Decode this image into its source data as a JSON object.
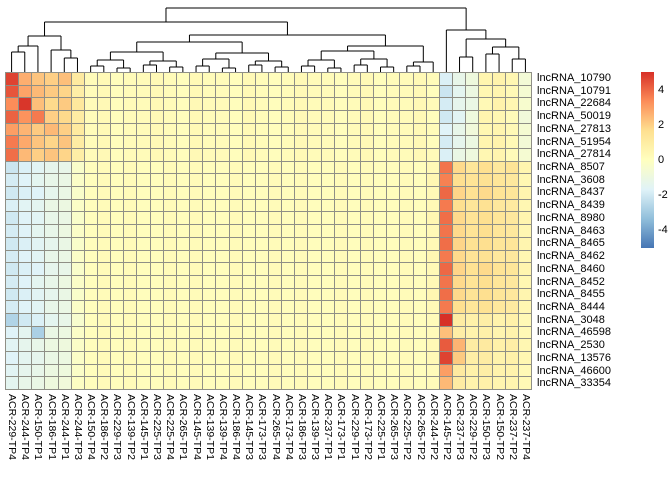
{
  "figure": {
    "kind": "clustered expression heatmap",
    "has_column_dendrogram": true,
    "has_row_dendrogram": false
  },
  "chart_data": {
    "type": "heatmap",
    "title": "",
    "xlabel": "",
    "ylabel": "",
    "legend_ticks": [
      4,
      2,
      0,
      -2,
      -4
    ],
    "value_range": [
      -4.5,
      4.5
    ],
    "colormap_stops": [
      "#4575B4",
      "#91BFDB",
      "#E0F3F8",
      "#FFFFBF",
      "#FEE090",
      "#FC8D59",
      "#D73027"
    ],
    "gridline_color": "#8f8f86",
    "rows": [
      "lncRNA_10790",
      "lncRNA_10791",
      "lncRNA_22684",
      "lncRNA_50019",
      "lncRNA_27813",
      "lncRNA_51954",
      "lncRNA_27814",
      "lncRNA_8507",
      "lncRNA_3608",
      "lncRNA_8437",
      "lncRNA_8439",
      "lncRNA_8980",
      "lncRNA_8463",
      "lncRNA_8465",
      "lncRNA_8462",
      "lncRNA_8460",
      "lncRNA_8452",
      "lncRNA_8455",
      "lncRNA_8444",
      "lncRNA_3048",
      "lncRNA_46598",
      "lncRNA_2530",
      "lncRNA_13576",
      "lncRNA_46600",
      "lncRNA_33354"
    ],
    "columns": [
      "ACR-229-TP4",
      "ACR-244-TP4",
      "ACR-150-TP1",
      "ACR-186-TP1",
      "ACR-244-TP1",
      "ACR-244-TP3",
      "ACR-150-TP4",
      "ACR-186-TP2",
      "ACR-229-TP3",
      "ACR-139-TP2",
      "ACR-145-TP1",
      "ACR-225-TP3",
      "ACR-225-TP4",
      "ACR-265-TP1",
      "ACR-145-TP4",
      "ACR-139-TP1",
      "ACR-139-TP4",
      "ACR-186-TP4",
      "ACR-145-TP3",
      "ACR-173-TP3",
      "ACR-265-TP4",
      "ACR-173-TP4",
      "ACR-186-TP3",
      "ACR-139-TP3",
      "ACR-237-TP1",
      "ACR-173-TP1",
      "ACR-229-TP1",
      "ACR-173-TP2",
      "ACR-225-TP1",
      "ACR-265-TP3",
      "ACR-225-TP2",
      "ACR-265-TP2",
      "ACR-244-TP2",
      "ACR-145-TP2",
      "ACR-237-TP3",
      "ACR-229-TP2",
      "ACR-150-TP3",
      "ACR-150-TP2",
      "ACR-237-TP2",
      "ACR-237-TP4"
    ],
    "values": [
      [
        4.2,
        2.4,
        2.0,
        1.8,
        2.1,
        1.0,
        0.2,
        0.3,
        0.1,
        0.2,
        0.2,
        0.3,
        0.2,
        0.1,
        0.3,
        0.2,
        0.2,
        0.1,
        0.3,
        0.2,
        0.1,
        0.2,
        0.3,
        0.2,
        0.2,
        0.1,
        0.2,
        0.3,
        0.1,
        0.2,
        0.2,
        0.3,
        0.2,
        -1.6,
        -1.1,
        -0.8,
        0.5,
        0.6,
        0.4,
        -0.6
      ],
      [
        3.9,
        2.6,
        2.2,
        1.9,
        1.7,
        0.8,
        0.2,
        0.3,
        0.1,
        0.2,
        0.2,
        0.3,
        0.2,
        0.1,
        0.3,
        0.2,
        0.2,
        0.1,
        0.3,
        0.2,
        0.1,
        0.2,
        0.3,
        0.2,
        0.2,
        0.1,
        0.2,
        0.3,
        0.1,
        0.2,
        0.2,
        0.3,
        0.1,
        -1.9,
        -1.3,
        -0.9,
        0.4,
        0.5,
        0.3,
        -0.5
      ],
      [
        3.0,
        4.4,
        2.1,
        1.6,
        1.9,
        1.1,
        0.2,
        0.3,
        0.1,
        0.2,
        0.2,
        0.3,
        0.2,
        0.1,
        0.3,
        0.2,
        0.2,
        0.1,
        0.3,
        0.2,
        0.1,
        0.2,
        0.3,
        0.2,
        0.2,
        0.1,
        0.2,
        0.3,
        0.1,
        0.2,
        0.2,
        0.3,
        0.2,
        -1.7,
        -1.2,
        -1.0,
        0.3,
        0.6,
        0.4,
        -0.4
      ],
      [
        3.7,
        2.9,
        3.3,
        1.8,
        1.6,
        0.9,
        0.2,
        0.3,
        0.1,
        0.2,
        0.2,
        0.3,
        0.2,
        0.1,
        0.3,
        0.2,
        0.2,
        0.1,
        0.3,
        0.2,
        0.1,
        0.2,
        0.3,
        0.2,
        0.2,
        0.1,
        0.2,
        0.3,
        0.1,
        0.2,
        0.2,
        0.3,
        0.1,
        -1.8,
        -1.4,
        -0.8,
        0.5,
        0.4,
        0.2,
        -0.7
      ],
      [
        2.7,
        2.3,
        1.9,
        2.2,
        1.8,
        1.0,
        0.2,
        0.3,
        0.1,
        0.2,
        0.2,
        0.3,
        0.2,
        0.1,
        0.3,
        0.2,
        0.2,
        0.1,
        0.3,
        0.2,
        0.1,
        0.2,
        0.3,
        0.2,
        0.2,
        0.1,
        0.2,
        0.3,
        0.1,
        0.2,
        0.2,
        0.3,
        0.2,
        -1.5,
        -1.1,
        -0.7,
        0.4,
        0.5,
        0.3,
        -0.5
      ],
      [
        3.3,
        2.5,
        2.0,
        1.7,
        2.0,
        0.9,
        0.2,
        0.3,
        0.1,
        0.2,
        0.2,
        0.3,
        0.2,
        0.1,
        0.3,
        0.2,
        0.2,
        0.1,
        0.3,
        0.2,
        0.1,
        0.2,
        0.3,
        0.2,
        0.2,
        0.1,
        0.2,
        0.3,
        0.1,
        0.2,
        0.2,
        0.3,
        0.1,
        -1.7,
        -1.2,
        -0.9,
        0.5,
        0.6,
        0.3,
        -0.6
      ],
      [
        3.5,
        2.2,
        1.8,
        2.0,
        1.7,
        0.8,
        0.2,
        0.3,
        0.1,
        0.2,
        0.2,
        0.3,
        0.2,
        0.1,
        0.3,
        0.2,
        0.2,
        0.1,
        0.3,
        0.2,
        0.1,
        0.2,
        0.3,
        0.2,
        0.2,
        0.1,
        0.2,
        0.3,
        0.1,
        0.2,
        0.2,
        0.3,
        0.2,
        -1.6,
        -1.0,
        -0.8,
        0.4,
        0.5,
        0.2,
        -0.5
      ],
      [
        -1.9,
        -1.6,
        -1.4,
        -1.2,
        -1.1,
        -0.3,
        0.1,
        0.2,
        0.1,
        0.2,
        0.1,
        0.1,
        0.2,
        0.1,
        0.2,
        0.1,
        0.1,
        0.2,
        0.1,
        0.1,
        0.2,
        0.1,
        0.2,
        0.1,
        0.1,
        0.2,
        0.1,
        0.2,
        0.1,
        0.1,
        0.2,
        0.1,
        0.3,
        3.4,
        1.6,
        1.2,
        1.5,
        1.1,
        1.3,
        0.5
      ],
      [
        -1.7,
        -1.5,
        -1.3,
        -1.1,
        -1.0,
        -0.2,
        0.1,
        0.2,
        0.1,
        0.2,
        0.1,
        0.1,
        0.2,
        0.1,
        0.2,
        0.1,
        0.1,
        0.2,
        0.1,
        0.1,
        0.2,
        0.1,
        0.2,
        0.1,
        0.1,
        0.2,
        0.1,
        0.2,
        0.1,
        0.1,
        0.2,
        0.1,
        0.4,
        3.2,
        1.5,
        1.3,
        1.4,
        1.2,
        1.1,
        0.4
      ],
      [
        -1.8,
        -1.6,
        -1.5,
        -1.2,
        -1.0,
        -0.3,
        0.1,
        0.2,
        0.1,
        0.2,
        0.1,
        0.1,
        0.2,
        0.1,
        0.2,
        0.1,
        0.1,
        0.2,
        0.1,
        0.1,
        0.2,
        0.1,
        0.2,
        0.1,
        0.1,
        0.2,
        0.1,
        0.2,
        0.1,
        0.1,
        0.2,
        0.1,
        0.3,
        3.6,
        1.7,
        1.4,
        1.6,
        1.3,
        1.2,
        0.5
      ],
      [
        -1.6,
        -1.4,
        -1.3,
        -1.0,
        -0.9,
        -0.2,
        0.1,
        0.2,
        0.1,
        0.2,
        0.1,
        0.1,
        0.2,
        0.1,
        0.2,
        0.1,
        0.1,
        0.2,
        0.1,
        0.1,
        0.2,
        0.1,
        0.2,
        0.1,
        0.1,
        0.2,
        0.1,
        0.2,
        0.1,
        0.1,
        0.2,
        0.1,
        0.3,
        3.3,
        1.5,
        1.2,
        1.4,
        1.1,
        1.0,
        0.4
      ],
      [
        -1.8,
        -1.5,
        -1.4,
        -1.1,
        -1.0,
        -0.3,
        0.1,
        0.2,
        0.1,
        0.2,
        0.1,
        0.1,
        0.2,
        0.1,
        0.2,
        0.1,
        0.1,
        0.2,
        0.1,
        0.1,
        0.2,
        0.1,
        0.2,
        0.1,
        0.1,
        0.2,
        0.1,
        0.2,
        0.1,
        0.1,
        0.2,
        0.1,
        0.4,
        3.5,
        1.6,
        1.3,
        1.5,
        1.2,
        1.1,
        0.5
      ],
      [
        -1.7,
        -1.5,
        -1.3,
        -1.1,
        -0.9,
        -0.2,
        0.1,
        0.2,
        0.1,
        0.2,
        0.1,
        0.1,
        0.2,
        0.1,
        0.2,
        0.1,
        0.1,
        0.2,
        0.1,
        0.1,
        0.2,
        0.1,
        0.2,
        0.1,
        0.1,
        0.2,
        0.1,
        0.2,
        0.1,
        0.1,
        0.2,
        0.1,
        0.3,
        3.4,
        1.6,
        1.3,
        1.5,
        1.2,
        1.1,
        0.4
      ],
      [
        -1.8,
        -1.6,
        -1.4,
        -1.2,
        -1.0,
        -0.3,
        0.1,
        0.2,
        0.1,
        0.2,
        0.1,
        0.1,
        0.2,
        0.1,
        0.2,
        0.1,
        0.1,
        0.2,
        0.1,
        0.1,
        0.2,
        0.1,
        0.2,
        0.1,
        0.1,
        0.2,
        0.1,
        0.2,
        0.1,
        0.1,
        0.2,
        0.1,
        0.3,
        3.5,
        1.7,
        1.4,
        1.5,
        1.2,
        1.2,
        0.5
      ],
      [
        -1.7,
        -1.5,
        -1.4,
        -1.1,
        -1.0,
        -0.2,
        0.1,
        0.2,
        0.1,
        0.2,
        0.1,
        0.1,
        0.2,
        0.1,
        0.2,
        0.1,
        0.1,
        0.2,
        0.1,
        0.1,
        0.2,
        0.1,
        0.2,
        0.1,
        0.1,
        0.2,
        0.1,
        0.2,
        0.1,
        0.1,
        0.2,
        0.1,
        0.4,
        3.3,
        1.6,
        1.3,
        1.4,
        1.1,
        1.1,
        0.4
      ],
      [
        -1.8,
        -1.6,
        -1.5,
        -1.2,
        -1.1,
        -0.3,
        0.1,
        0.2,
        0.1,
        0.2,
        0.1,
        0.1,
        0.2,
        0.1,
        0.2,
        0.1,
        0.1,
        0.2,
        0.1,
        0.1,
        0.2,
        0.1,
        0.2,
        0.1,
        0.1,
        0.2,
        0.1,
        0.2,
        0.1,
        0.1,
        0.2,
        0.1,
        0.3,
        3.6,
        1.7,
        1.4,
        1.6,
        1.3,
        1.2,
        0.5
      ],
      [
        -1.7,
        -1.5,
        -1.3,
        -1.1,
        -0.9,
        -0.2,
        0.1,
        0.2,
        0.1,
        0.2,
        0.1,
        0.1,
        0.2,
        0.1,
        0.2,
        0.1,
        0.1,
        0.2,
        0.1,
        0.1,
        0.2,
        0.1,
        0.2,
        0.1,
        0.1,
        0.2,
        0.1,
        0.2,
        0.1,
        0.1,
        0.2,
        0.1,
        0.3,
        3.4,
        1.6,
        1.3,
        1.5,
        1.2,
        1.1,
        0.4
      ],
      [
        -1.8,
        -1.6,
        -1.4,
        -1.2,
        -1.0,
        -0.3,
        0.1,
        0.2,
        0.1,
        0.2,
        0.1,
        0.1,
        0.2,
        0.1,
        0.2,
        0.1,
        0.1,
        0.2,
        0.1,
        0.1,
        0.2,
        0.1,
        0.2,
        0.1,
        0.1,
        0.2,
        0.1,
        0.2,
        0.1,
        0.1,
        0.2,
        0.1,
        0.4,
        3.5,
        1.6,
        1.3,
        1.5,
        1.2,
        1.1,
        0.5
      ],
      [
        -1.7,
        -1.5,
        -1.4,
        -1.1,
        -1.0,
        -0.2,
        0.1,
        0.2,
        0.1,
        0.2,
        0.1,
        0.1,
        0.2,
        0.1,
        0.2,
        0.1,
        0.1,
        0.2,
        0.1,
        0.1,
        0.2,
        0.1,
        0.2,
        0.1,
        0.1,
        0.2,
        0.1,
        0.2,
        0.1,
        0.1,
        0.2,
        0.1,
        0.3,
        3.3,
        1.5,
        1.2,
        1.4,
        1.1,
        1.0,
        0.4
      ],
      [
        -2.4,
        -1.8,
        -1.6,
        -1.3,
        -1.1,
        -0.4,
        0.1,
        0.2,
        0.1,
        0.2,
        0.1,
        0.1,
        0.2,
        0.1,
        0.2,
        0.1,
        0.1,
        0.2,
        0.1,
        0.1,
        0.2,
        0.1,
        0.2,
        0.1,
        0.1,
        0.2,
        0.1,
        0.2,
        0.1,
        0.1,
        0.2,
        0.1,
        0.2,
        4.6,
        0.9,
        0.7,
        0.8,
        0.6,
        0.7,
        0.3
      ],
      [
        -1.5,
        -1.3,
        -2.5,
        -1.0,
        -0.9,
        -0.2,
        0.1,
        0.2,
        0.1,
        0.2,
        0.1,
        0.1,
        0.2,
        0.1,
        0.2,
        0.1,
        0.1,
        0.2,
        0.1,
        0.1,
        0.2,
        0.1,
        0.2,
        0.1,
        0.1,
        0.2,
        0.1,
        0.2,
        0.1,
        0.1,
        0.2,
        0.1,
        0.2,
        2.1,
        0.8,
        0.6,
        0.7,
        0.5,
        0.6,
        0.3
      ],
      [
        -1.4,
        -1.2,
        -1.1,
        -0.9,
        -0.8,
        -0.2,
        0.1,
        0.2,
        0.1,
        0.2,
        0.1,
        0.1,
        0.2,
        0.1,
        0.2,
        0.1,
        0.1,
        0.2,
        0.1,
        0.1,
        0.2,
        0.1,
        0.2,
        0.1,
        0.1,
        0.2,
        0.1,
        0.2,
        0.1,
        0.1,
        0.2,
        0.1,
        0.3,
        3.8,
        2.3,
        0.9,
        1.0,
        0.7,
        0.8,
        0.4
      ],
      [
        -1.5,
        -1.3,
        -1.2,
        -1.0,
        -0.9,
        -0.2,
        0.1,
        0.2,
        0.1,
        0.2,
        0.1,
        0.1,
        0.2,
        0.1,
        0.2,
        0.1,
        0.1,
        0.2,
        0.1,
        0.1,
        0.2,
        0.1,
        0.2,
        0.1,
        0.1,
        0.2,
        0.1,
        0.2,
        0.1,
        0.1,
        0.2,
        0.1,
        0.3,
        4.2,
        1.9,
        0.8,
        0.9,
        0.6,
        0.7,
        0.4
      ],
      [
        -1.4,
        -1.2,
        -1.1,
        -0.9,
        -0.8,
        -0.2,
        0.1,
        0.2,
        0.1,
        0.2,
        0.1,
        0.1,
        0.2,
        0.1,
        0.2,
        0.1,
        0.1,
        0.2,
        0.1,
        0.1,
        0.2,
        0.1,
        0.2,
        0.1,
        0.1,
        0.2,
        0.1,
        0.2,
        0.1,
        0.1,
        0.2,
        0.1,
        0.2,
        2.7,
        1.0,
        0.7,
        0.8,
        0.6,
        0.6,
        0.3
      ],
      [
        -1.3,
        -1.1,
        -1.0,
        -0.8,
        -0.7,
        -0.1,
        0.1,
        0.2,
        0.1,
        0.2,
        0.1,
        0.1,
        0.2,
        0.1,
        0.2,
        0.1,
        0.1,
        0.2,
        0.1,
        0.1,
        0.2,
        0.1,
        0.2,
        0.1,
        0.1,
        0.2,
        0.1,
        0.2,
        0.1,
        0.1,
        0.2,
        0.1,
        0.2,
        2.2,
        0.9,
        0.6,
        0.7,
        0.5,
        0.5,
        0.3
      ]
    ],
    "col_dendrogram": [
      [
        [
          [
            [
              0,
              1,
              50
            ],
            2,
            44
          ],
          [
            3,
            [
              4,
              5,
              56
            ],
            48
          ],
          34
        ],
        [
          [
            [
              [
                [
                  6,
                  7,
                  64
                ],
                [
                  8,
                  9,
                  66
                ],
                58
              ],
              [
                [
                  10,
                  11,
                  63
                ],
                [
                  12,
                  13,
                  65
                ],
                59
              ],
              50
            ],
            [
              [
                [
                  14,
                  15,
                  64
                ],
                [
                  16,
                  17,
                  66
                ],
                57
              ],
              [
                [
                  18,
                  19,
                  63
                ],
                [
                  20,
                  21,
                  65
                ],
                59
              ],
              51
            ],
            40
          ],
          [
            [
              [
                [
                  22,
                  23,
                  64
                ],
                [
                  24,
                  25,
                  66
                ],
                58
              ],
              [
                [
                  26,
                  27,
                  63
                ],
                [
                  28,
                  29,
                  65
                ],
                57
              ],
              49
            ],
            [
              [
                30,
                31,
                64
              ],
              32,
              60
            ],
            44
          ],
          33
        ],
        20
      ],
      [
        33,
        [
          [
            34,
            35,
            55
          ],
          [
            [
              36,
              37,
              52
            ],
            [
              38,
              39,
              57
            ],
            45
          ],
          37
        ],
        28
      ],
      6
    ]
  }
}
